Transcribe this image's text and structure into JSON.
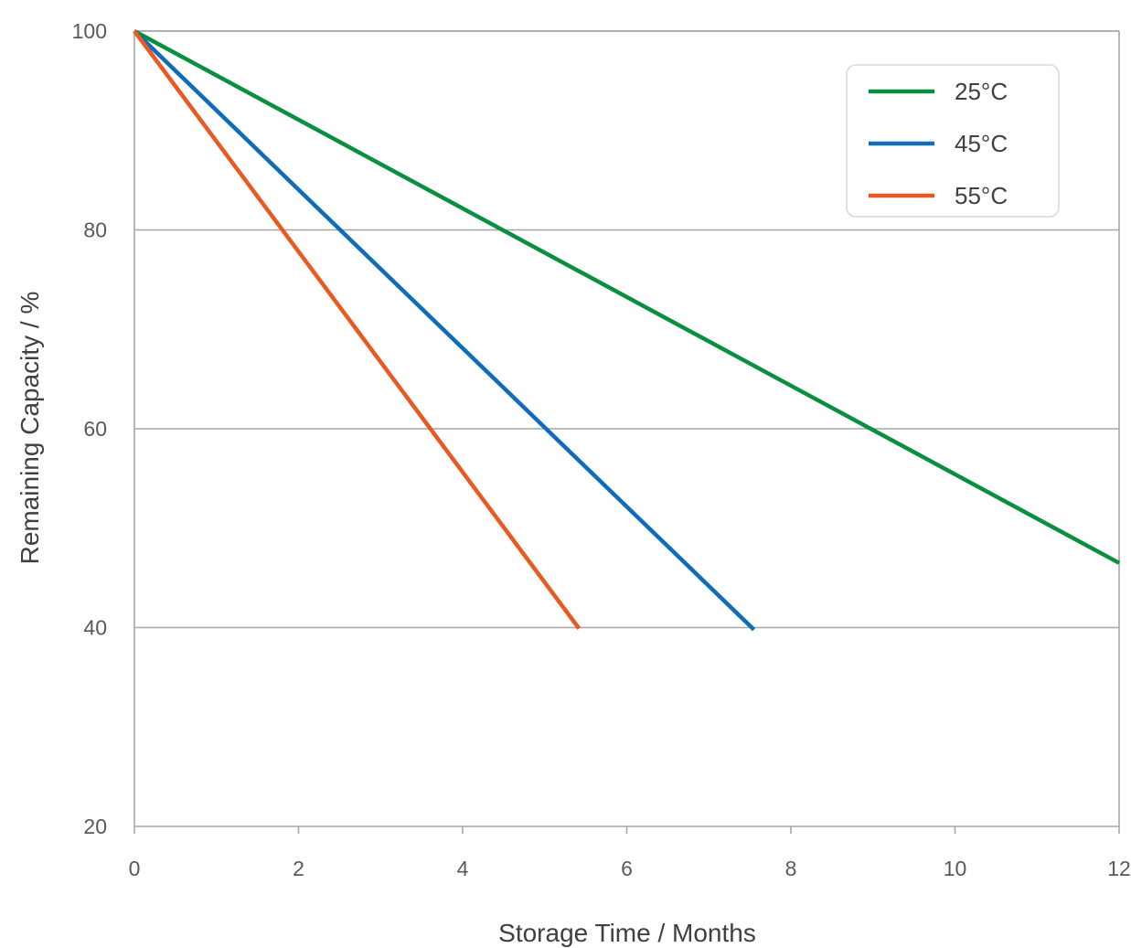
{
  "chart_data": {
    "type": "line",
    "title": "",
    "xlabel": "Storage Time / Months",
    "ylabel": "Remaining Capacity / %",
    "xlim": [
      0,
      12
    ],
    "ylim": [
      20,
      100
    ],
    "x_ticks": [
      "0",
      "2",
      "4",
      "6",
      "8",
      "10",
      "12"
    ],
    "y_ticks": [
      "20",
      "40",
      "60",
      "80",
      "100"
    ],
    "grid": "horizontal",
    "legend_position": "top-right",
    "series": [
      {
        "name": "25°C",
        "color": "#0a8f3f",
        "x": [
          0,
          12
        ],
        "y": [
          100,
          46.5
        ]
      },
      {
        "name": "45°C",
        "color": "#0f6cb8",
        "x": [
          0,
          7.55
        ],
        "y": [
          100,
          39.8
        ]
      },
      {
        "name": "55°C",
        "color": "#e85a24",
        "x": [
          0,
          5.42
        ],
        "y": [
          100,
          39.9
        ]
      }
    ]
  }
}
